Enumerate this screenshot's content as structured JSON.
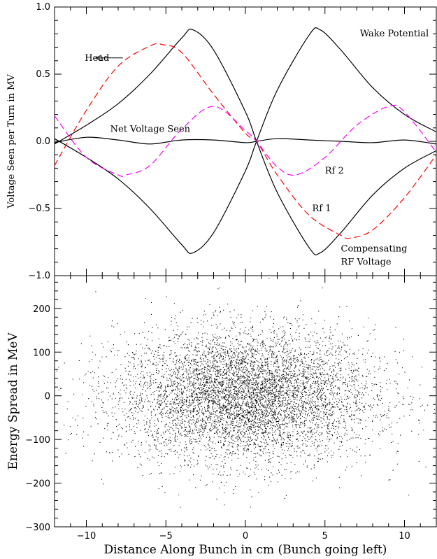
{
  "chart_data": [
    {
      "type": "line",
      "ylabel": "Voltage Seen per Turn in MV",
      "xlim": [
        -12,
        12
      ],
      "ylim": [
        -1.0,
        1.0
      ],
      "yticks": [
        "−1.0",
        "−0.5",
        "0.0",
        "0.5",
        "1.0"
      ],
      "series": [
        {
          "name": "Wake Potential",
          "style": "solid",
          "color": "#000000",
          "x": [
            -12,
            -10,
            -8,
            -6,
            -4,
            -3.3,
            -2,
            0,
            0.7,
            2,
            4,
            4.7,
            6,
            8,
            10,
            12
          ],
          "y": [
            -0.02,
            0.12,
            0.28,
            0.5,
            0.77,
            0.83,
            0.68,
            0.22,
            0.0,
            -0.38,
            -0.79,
            -0.83,
            -0.68,
            -0.4,
            -0.2,
            -0.07
          ]
        },
        {
          "name": "Compensating RF Voltage",
          "style": "solid",
          "color": "#000000",
          "x": [
            -12,
            -10,
            -8,
            -6,
            -4,
            -3.3,
            -2,
            0,
            0.7,
            2,
            4,
            4.7,
            6,
            8,
            10,
            12
          ],
          "y": [
            0.02,
            -0.12,
            -0.28,
            -0.5,
            -0.77,
            -0.83,
            -0.68,
            -0.22,
            0.0,
            0.38,
            0.79,
            0.83,
            0.68,
            0.4,
            0.2,
            0.07
          ]
        },
        {
          "name": "Net Voltage Seen",
          "style": "solid",
          "color": "#000000",
          "x": [
            -12,
            -10,
            -8,
            -6,
            -4,
            -2,
            0,
            0.7,
            2,
            4,
            6,
            8,
            10,
            12
          ],
          "y": [
            -0.01,
            0.03,
            0.01,
            -0.02,
            0.01,
            0.01,
            -0.01,
            0.0,
            0.02,
            0.01,
            0.0,
            -0.01,
            0.01,
            -0.02
          ]
        },
        {
          "name": "Rf 1",
          "style": "dashed",
          "color": "#ff0000",
          "x": [
            -12,
            -10,
            -8,
            -6,
            -5.2,
            -4,
            -2,
            0,
            0.7,
            2,
            4,
            6,
            6.6,
            8,
            10,
            12
          ],
          "y": [
            -0.18,
            0.23,
            0.56,
            0.71,
            0.72,
            0.66,
            0.35,
            0.06,
            0.0,
            -0.25,
            -0.55,
            -0.7,
            -0.72,
            -0.66,
            -0.42,
            -0.1
          ]
        },
        {
          "name": "Rf 2",
          "style": "dashed",
          "color": "#ff00ff",
          "x": [
            -12,
            -10,
            -8,
            -7.5,
            -6,
            -4,
            -2,
            0,
            0.7,
            2,
            3.2,
            5,
            7,
            9,
            10,
            12
          ],
          "y": [
            0.19,
            -0.12,
            -0.25,
            -0.25,
            -0.18,
            0.09,
            0.26,
            0.08,
            0.0,
            -0.19,
            -0.25,
            -0.12,
            0.12,
            0.26,
            0.22,
            -0.08
          ]
        }
      ],
      "annotations": [
        {
          "text": "Wake Potential",
          "x": 7.2,
          "y": 0.78
        },
        {
          "text": "Head",
          "x": -10.1,
          "y": 0.6
        },
        {
          "text": "Net Voltage Seen",
          "x": -8.5,
          "y": 0.07
        },
        {
          "text": "Rf 2",
          "x": 5.0,
          "y": -0.24
        },
        {
          "text": "Rf 1",
          "x": 4.2,
          "y": -0.52
        },
        {
          "text": "Compensating",
          "x": 6.0,
          "y": -0.82
        },
        {
          "text": "RF Voltage",
          "x": 6.0,
          "y": -0.92
        }
      ]
    },
    {
      "type": "scatter",
      "xlabel": "Distance Along Bunch in cm (Bunch going left)",
      "ylabel": "Energy Spread in MeV",
      "xlim": [
        -12,
        12
      ],
      "ylim": [
        -300,
        275
      ],
      "xticks": [
        "−10",
        "−5",
        "0",
        "5",
        "10"
      ],
      "yticks": [
        "−300",
        "−200",
        "−100",
        "0",
        "100",
        "200"
      ],
      "distribution": {
        "x_mean": 0.0,
        "x_sigma": 4.0,
        "y_mean": 0.0,
        "y_sigma": 75.0,
        "n_points": 30000
      }
    }
  ]
}
